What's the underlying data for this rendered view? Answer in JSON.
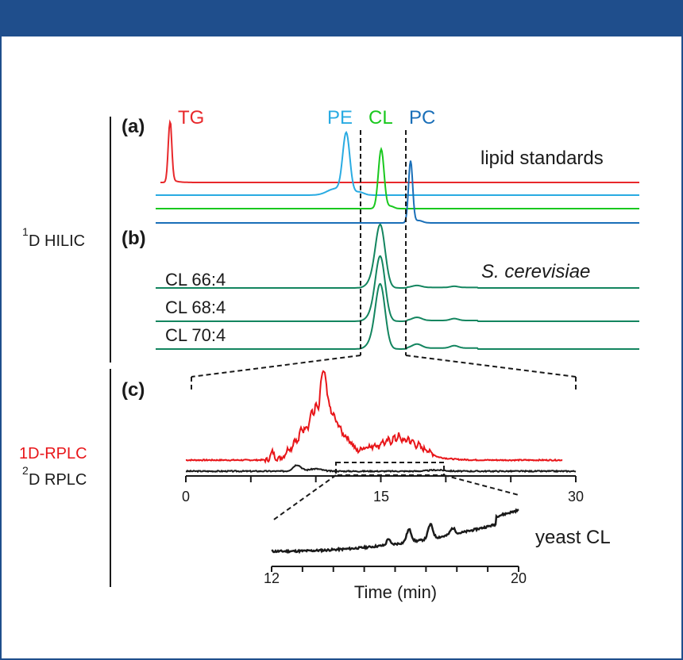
{
  "colors": {
    "header": "#1f4e8c",
    "tg": "#e8282b",
    "pe": "#29abe2",
    "cl": "#19c81e",
    "pc": "#1a6fb8",
    "yeast": "#13855f",
    "rplc1d": "#e8161a",
    "black": "#1a1a1a"
  },
  "labels": {
    "panel_a": "(a)",
    "panel_b": "(b)",
    "panel_c": "(c)",
    "hilic_sup": "1",
    "hilic_text": "D HILIC",
    "rplc1d": "1D-RPLC",
    "rplc2d_sup": "2",
    "rplc2d_text": "D RPLC",
    "tg": "TG",
    "pe": "PE",
    "cl": "CL",
    "pc": "PC",
    "lipid_standards": "lipid standards",
    "s_cerevisiae": "S. cerevisiae",
    "cl66": "CL 66:4",
    "cl68": "CL 68:4",
    "cl70": "CL 70:4",
    "yeast_cl": "yeast CL",
    "time_axis": "Time (min)"
  },
  "chart_data": [
    {
      "type": "line",
      "title": "lipid standards",
      "panel": "(a)",
      "xlabel": "",
      "ylabel": "",
      "series": [
        {
          "name": "TG",
          "color": "#e8282b",
          "peak_position": 0.03
        },
        {
          "name": "PE",
          "color": "#29abe2",
          "peak_position": 0.39
        },
        {
          "name": "CL",
          "color": "#19c81e",
          "peak_position": 0.47
        },
        {
          "name": "PC",
          "color": "#1a6fb8",
          "peak_position": 0.51
        }
      ]
    },
    {
      "type": "line",
      "title": "S. cerevisiae",
      "panel": "(b)",
      "series": [
        {
          "name": "CL 66:4",
          "color": "#13855f"
        },
        {
          "name": "CL 68:4",
          "color": "#13855f"
        },
        {
          "name": "CL 70:4",
          "color": "#13855f"
        }
      ]
    },
    {
      "type": "line",
      "panel": "(c)",
      "series": [
        {
          "name": "1D-RPLC",
          "color": "#e8161a"
        },
        {
          "name": "2D RPLC",
          "color": "#1a1a1a"
        }
      ],
      "x_ticks": [
        "0",
        "15",
        "30"
      ],
      "xlim": [
        0,
        30
      ]
    },
    {
      "type": "line",
      "title": "yeast CL",
      "series": [
        {
          "name": "yeast CL",
          "color": "#1a1a1a"
        }
      ],
      "x_ticks": [
        "12",
        "20"
      ],
      "xlim": [
        12,
        20
      ],
      "xlabel": "Time (min)"
    }
  ],
  "tick_labels": {
    "main_0": "0",
    "main_15": "15",
    "main_30": "30",
    "zoom_12": "12",
    "zoom_20": "20"
  }
}
